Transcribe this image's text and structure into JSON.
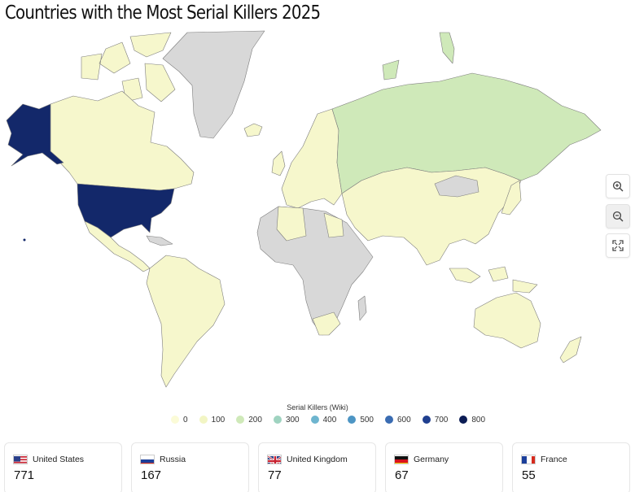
{
  "title": "Countries with the Most Serial Killers 2025",
  "legend": {
    "title": "Serial Killers (Wiki)",
    "items": [
      {
        "label": "0",
        "color": "#fbfbd7"
      },
      {
        "label": "100",
        "color": "#f2f5c4"
      },
      {
        "label": "200",
        "color": "#cfe9b9"
      },
      {
        "label": "300",
        "color": "#9fd3c0"
      },
      {
        "label": "400",
        "color": "#6eb5cf"
      },
      {
        "label": "500",
        "color": "#4d95c4"
      },
      {
        "label": "600",
        "color": "#3a6cb2"
      },
      {
        "label": "700",
        "color": "#1f3f8f"
      },
      {
        "label": "800",
        "color": "#0b1c54"
      }
    ]
  },
  "map_colors": {
    "no_data": "#d8d8d8",
    "low": "#f6f7cc",
    "russia": "#cfe9b9",
    "usa": "#13286a"
  },
  "zoom_controls": [
    {
      "name": "zoom-in-icon"
    },
    {
      "name": "zoom-out-icon"
    },
    {
      "name": "fullscreen-icon"
    }
  ],
  "cards": [
    {
      "country": "United States",
      "value": "771",
      "flag": "us-flag-icon"
    },
    {
      "country": "Russia",
      "value": "167",
      "flag": "russia-flag-icon"
    },
    {
      "country": "United Kingdom",
      "value": "77",
      "flag": "uk-flag-icon"
    },
    {
      "country": "Germany",
      "value": "67",
      "flag": "germany-flag-icon"
    },
    {
      "country": "France",
      "value": "55",
      "flag": "france-flag-icon"
    }
  ]
}
